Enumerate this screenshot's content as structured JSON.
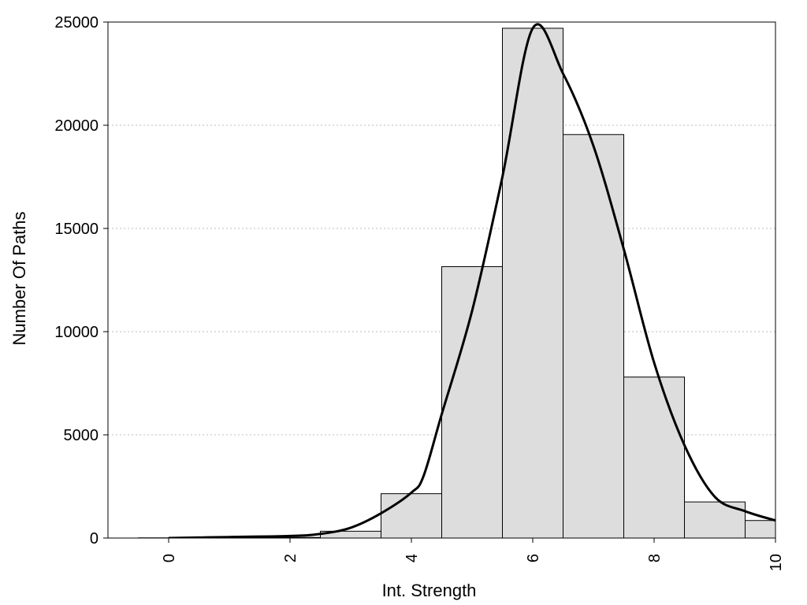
{
  "chart_data": {
    "type": "bar",
    "title": "",
    "xlabel": "Int. Strength",
    "ylabel": "Number Of Paths",
    "xlim": [
      -1,
      10
    ],
    "ylim": [
      0,
      25000
    ],
    "x_ticks": [
      "0",
      "2",
      "4",
      "6",
      "8",
      "10"
    ],
    "y_ticks": [
      "0",
      "5000",
      "10000",
      "15000",
      "20000",
      "25000"
    ],
    "grid": "horizontal dotted",
    "legend": "none",
    "bar_color": "#dddddd",
    "line_color": "#000000",
    "bars": [
      {
        "x": 0,
        "value": 10
      },
      {
        "x": 1,
        "value": 15
      },
      {
        "x": 2,
        "value": 30
      },
      {
        "x": 3,
        "value": 330
      },
      {
        "x": 4,
        "value": 2150
      },
      {
        "x": 5,
        "value": 13150
      },
      {
        "x": 6,
        "value": 24700
      },
      {
        "x": 7,
        "value": 19550
      },
      {
        "x": 8,
        "value": 7800
      },
      {
        "x": 9,
        "value": 1750
      },
      {
        "x": 10,
        "value": 850
      }
    ],
    "density_curve": {
      "x": [
        0,
        1,
        2,
        2.5,
        3,
        3.5,
        4,
        4.2,
        4.5,
        5,
        5.5,
        6,
        6.5,
        7,
        7.5,
        8,
        8.5,
        9,
        9.5,
        10
      ],
      "y": [
        0,
        50,
        100,
        200,
        500,
        1200,
        2200,
        3000,
        6000,
        11000,
        17500,
        24700,
        22500,
        19000,
        14000,
        8500,
        4500,
        2000,
        1300,
        850
      ]
    }
  }
}
